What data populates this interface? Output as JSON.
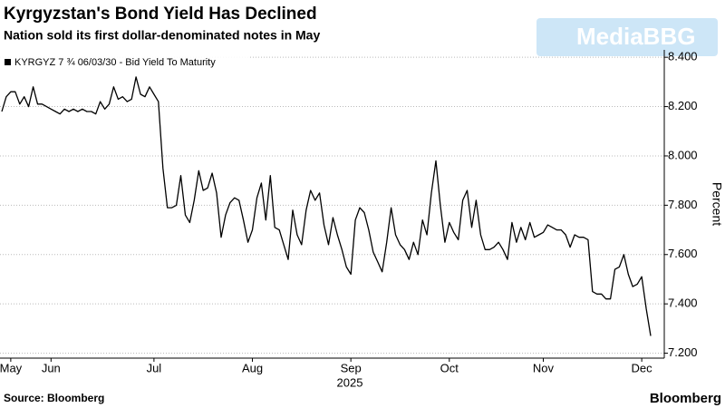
{
  "chart_data": {
    "type": "line",
    "title": "Kyrgyzstan's Bond Yield Has Declined",
    "subtitle": "Nation sold its first dollar-denominated notes in May",
    "source": "Source: Bloomberg",
    "brand": "Bloomberg",
    "watermark": "MediaBBG",
    "y_label": "Percent",
    "x_sublabel": "2025",
    "grid": true,
    "legend": "top-left",
    "categories": [
      null,
      null,
      "May",
      null,
      null,
      null,
      null,
      null,
      null,
      null,
      null,
      "Jun",
      null,
      null,
      null,
      null,
      null,
      null,
      null,
      null,
      null,
      null,
      null,
      null,
      null,
      null,
      null,
      null,
      null,
      null,
      null,
      null,
      null,
      null,
      "Jul",
      null,
      null,
      null,
      null,
      null,
      null,
      null,
      null,
      null,
      null,
      null,
      null,
      null,
      null,
      null,
      null,
      null,
      null,
      null,
      null,
      null,
      "Aug",
      null,
      null,
      null,
      null,
      null,
      null,
      null,
      null,
      null,
      null,
      null,
      null,
      null,
      null,
      null,
      null,
      null,
      null,
      null,
      null,
      null,
      "Sep",
      null,
      null,
      null,
      null,
      null,
      null,
      null,
      null,
      null,
      null,
      null,
      null,
      null,
      null,
      null,
      null,
      null,
      null,
      null,
      null,
      null,
      "Oct",
      null,
      null,
      null,
      null,
      null,
      null,
      null,
      null,
      null,
      null,
      null,
      null,
      null,
      null,
      null,
      null,
      null,
      null,
      null,
      null,
      "Nov",
      null,
      null,
      null,
      null,
      null,
      null,
      null,
      null,
      null,
      null,
      null,
      null,
      null,
      null,
      null,
      null,
      null,
      null,
      null,
      null,
      null,
      "Dec",
      null,
      null
    ],
    "series": [
      {
        "name": "KYRGYZ 7 ¾ 06/03/30 - Bid Yield To Maturity",
        "color": "#000000",
        "values": [
          8.18,
          8.24,
          8.26,
          8.26,
          8.21,
          8.24,
          8.2,
          8.28,
          8.21,
          8.21,
          8.2,
          8.19,
          8.18,
          8.17,
          8.19,
          8.18,
          8.19,
          8.18,
          8.19,
          8.18,
          8.18,
          8.17,
          8.22,
          8.19,
          8.21,
          8.28,
          8.23,
          8.24,
          8.22,
          8.23,
          8.32,
          8.25,
          8.24,
          8.28,
          8.25,
          8.22,
          7.95,
          7.79,
          7.79,
          7.8,
          7.92,
          7.76,
          7.73,
          7.82,
          7.94,
          7.86,
          7.87,
          7.93,
          7.85,
          7.67,
          7.76,
          7.81,
          7.83,
          7.82,
          7.74,
          7.65,
          7.7,
          7.83,
          7.89,
          7.74,
          7.92,
          7.71,
          7.7,
          7.64,
          7.58,
          7.78,
          7.68,
          7.64,
          7.78,
          7.86,
          7.82,
          7.85,
          7.72,
          7.64,
          7.75,
          7.68,
          7.62,
          7.55,
          7.52,
          7.74,
          7.79,
          7.77,
          7.7,
          7.61,
          7.57,
          7.53,
          7.65,
          7.79,
          7.68,
          7.64,
          7.62,
          7.58,
          7.65,
          7.6,
          7.74,
          7.68,
          7.85,
          7.98,
          7.8,
          7.65,
          7.73,
          7.69,
          7.66,
          7.82,
          7.86,
          7.71,
          7.82,
          7.68,
          7.62,
          7.62,
          7.63,
          7.65,
          7.62,
          7.58,
          7.73,
          7.65,
          7.71,
          7.66,
          7.73,
          7.67,
          7.68,
          7.69,
          7.72,
          7.71,
          7.7,
          7.7,
          7.68,
          7.63,
          7.68,
          7.67,
          7.67,
          7.66,
          7.45,
          7.44,
          7.44,
          7.42,
          7.42,
          7.54,
          7.55,
          7.6,
          7.52,
          7.47,
          7.48,
          7.51,
          7.38,
          7.27
        ]
      }
    ],
    "ylim": [
      7.18,
      8.43
    ],
    "yticks": [
      {
        "value": 7.2,
        "label": "7.200"
      },
      {
        "value": 7.4,
        "label": "7.400"
      },
      {
        "value": 7.6,
        "label": "7.600"
      },
      {
        "value": 7.8,
        "label": "7.800"
      },
      {
        "value": 8.0,
        "label": "8.000"
      },
      {
        "value": 8.2,
        "label": "8.200"
      },
      {
        "value": 8.4,
        "label": "8.400"
      }
    ]
  }
}
